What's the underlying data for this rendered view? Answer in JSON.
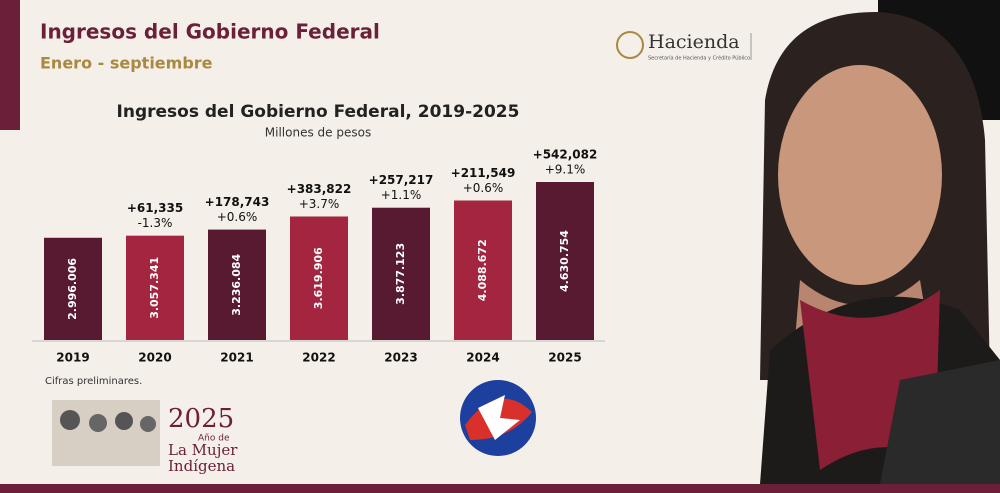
{
  "header": {
    "title": "Ingresos del Gobierno Federal",
    "subtitle": "Enero - septiembre",
    "logo_name": "Hacienda",
    "logo_caption": "Secretaría de Hacienda y Crédito Público"
  },
  "chart_data": {
    "type": "bar",
    "title": "Ingresos del Gobierno Federal, 2019-2025",
    "subtitle": "Millones de pesos",
    "categories": [
      "2019",
      "2020",
      "2021",
      "2022",
      "2023",
      "2024",
      "2025"
    ],
    "values": [
      2996006,
      3057341,
      3236084,
      3619906,
      3877123,
      4088672,
      4630754
    ],
    "value_labels": [
      "2.996.006",
      "3.057.341",
      "3.236.084",
      "3.619.906",
      "3.877.123",
      "4.088.672",
      "4.630.754"
    ],
    "changes": [
      null,
      "+61,335",
      "+178,743",
      "+383,822",
      "+257,217",
      "+211,549",
      "+542,082"
    ],
    "pct_changes": [
      null,
      "-1.3%",
      "+0.6%",
      "+3.7%",
      "+1.1%",
      "+0.6%",
      "+9.1%"
    ],
    "colors": [
      "#571a30",
      "#a3253f",
      "#571a30",
      "#a3253f",
      "#571a30",
      "#a3253f",
      "#571a30"
    ],
    "note": "Cifras preliminares."
  },
  "footer": {
    "year": "2025",
    "line1": "Año de",
    "line2": "La Mujer",
    "line3": "Indígena"
  }
}
